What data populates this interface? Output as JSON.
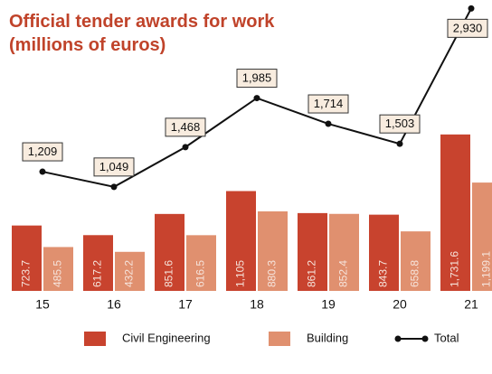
{
  "chart_data": {
    "type": "bar",
    "title": "Official tender awards for work",
    "subtitle": "(millions of euros)",
    "categories": [
      "15",
      "16",
      "17",
      "18",
      "19",
      "20",
      "21"
    ],
    "series": [
      {
        "name": "Civil Engineering",
        "color": "#c8432e",
        "values": [
          723.7,
          617.2,
          851.6,
          1105,
          861.2,
          843.7,
          1731.6
        ],
        "value_labels": [
          "723.7",
          "617.2",
          "851.6",
          "1,105",
          "861.2",
          "843.7",
          "1,731.6"
        ]
      },
      {
        "name": "Building",
        "color": "#e0906f",
        "values": [
          485.5,
          432.2,
          616.5,
          880.3,
          852.4,
          658.8,
          1199.1
        ],
        "value_labels": [
          "485.5",
          "432.2",
          "616.5",
          "880.3",
          "852.4",
          "658.8",
          "1,199.1"
        ]
      },
      {
        "name": "Total",
        "type": "line",
        "color": "#111111",
        "values": [
          1209,
          1049,
          1468,
          1985,
          1714,
          1503,
          2930
        ],
        "value_labels": [
          "1,209",
          "1,049",
          "1,468",
          "1,985",
          "1,714",
          "1,503",
          "2,930"
        ]
      }
    ]
  }
}
